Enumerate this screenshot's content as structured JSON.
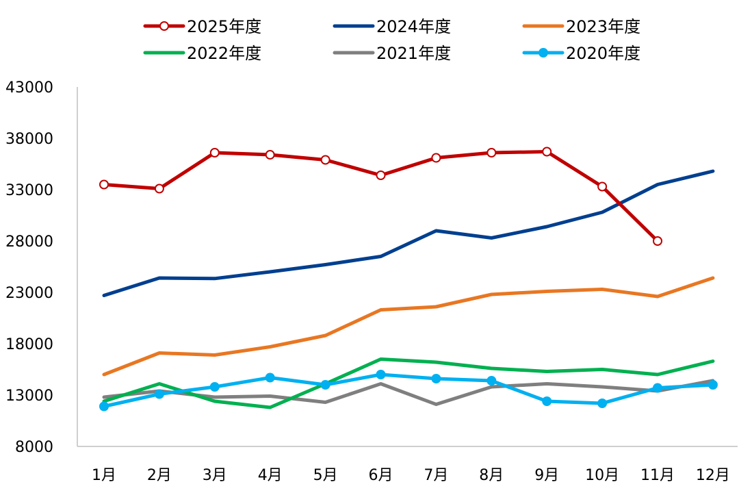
{
  "chart_data": {
    "type": "line",
    "title": "",
    "xlabel": "",
    "ylabel": "",
    "categories": [
      "1月",
      "2月",
      "3月",
      "4月",
      "5月",
      "6月",
      "7月",
      "8月",
      "9月",
      "10月",
      "11月",
      "12月"
    ],
    "ylim": [
      8000,
      43000
    ],
    "yticks": [
      "43000",
      "38000",
      "33000",
      "28000",
      "23000",
      "18000",
      "13000",
      "8000"
    ],
    "grid": false,
    "legend_position": "top",
    "series": [
      {
        "name": "2025年度",
        "color": "#C00000",
        "marker": "hollow-circle",
        "values": [
          33500,
          33100,
          36600,
          36400,
          35900,
          34400,
          36100,
          36600,
          36700,
          33300,
          28000,
          null
        ]
      },
      {
        "name": "2024年度",
        "color": "#003F8F",
        "marker": "none",
        "values": [
          22700,
          24400,
          24350,
          25000,
          25700,
          26500,
          29000,
          28300,
          29400,
          30800,
          33500,
          34800
        ]
      },
      {
        "name": "2023年度",
        "color": "#E87722",
        "marker": "none",
        "values": [
          15000,
          17100,
          16900,
          17700,
          18800,
          21300,
          21600,
          22800,
          23100,
          23300,
          22600,
          24400
        ]
      },
      {
        "name": "2022年度",
        "color": "#00B050",
        "marker": "none",
        "values": [
          12400,
          14100,
          12400,
          11800,
          14100,
          16500,
          16200,
          15600,
          15300,
          15500,
          15000,
          16300
        ]
      },
      {
        "name": "2021年度",
        "color": "#7F7F7F",
        "marker": "none",
        "values": [
          12800,
          13400,
          12800,
          12900,
          12300,
          14100,
          12100,
          13800,
          14100,
          13800,
          13400,
          14400
        ]
      },
      {
        "name": "2020年度",
        "color": "#00B0F0",
        "marker": "filled-circle",
        "values": [
          11900,
          13100,
          13800,
          14700,
          14000,
          15000,
          14600,
          14400,
          12400,
          12200,
          13700,
          14000
        ]
      }
    ]
  }
}
